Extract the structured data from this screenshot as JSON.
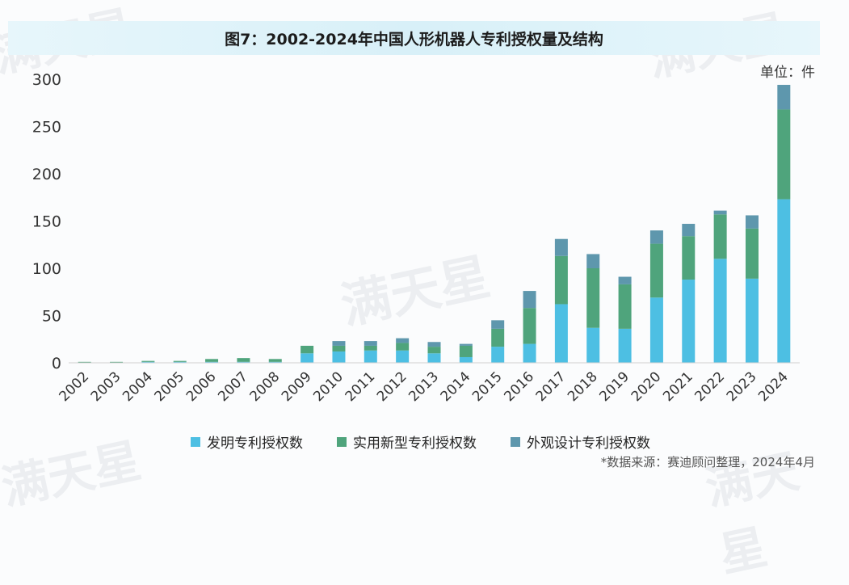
{
  "title": "图7：2002-2024年中国人形机器人专利授权量及结构",
  "unit": "单位：件",
  "source": "*数据来源：赛迪顾问整理，2024年4月",
  "watermark": "满天星",
  "colors": {
    "invention": "#4dbfe3",
    "utility": "#4fa47c",
    "design": "#5e97ad"
  },
  "chart_data": {
    "type": "bar",
    "stacked": true,
    "categories": [
      "2002",
      "2003",
      "2004",
      "2005",
      "2006",
      "2007",
      "2008",
      "2009",
      "2010",
      "2011",
      "2012",
      "2013",
      "2014",
      "2015",
      "2016",
      "2017",
      "2018",
      "2019",
      "2020",
      "2021",
      "2022",
      "2023",
      "2024"
    ],
    "series": [
      {
        "name": "发明专利授权数",
        "values": [
          0,
          0,
          1,
          1,
          1,
          1,
          1,
          10,
          12,
          13,
          13,
          10,
          6,
          17,
          20,
          62,
          37,
          36,
          69,
          88,
          110,
          89,
          173
        ]
      },
      {
        "name": "实用新型专利授权数",
        "values": [
          1,
          1,
          1,
          1,
          3,
          4,
          3,
          8,
          6,
          5,
          8,
          7,
          12,
          19,
          38,
          51,
          63,
          47,
          57,
          46,
          47,
          53,
          95
        ]
      },
      {
        "name": "外观设计专利授权数",
        "values": [
          0,
          0,
          0,
          0,
          0,
          0,
          0,
          0,
          5,
          5,
          5,
          5,
          2,
          9,
          18,
          18,
          15,
          8,
          14,
          13,
          4,
          14,
          26
        ]
      }
    ],
    "ylim": [
      0,
      300
    ],
    "yticks": [
      0,
      50,
      100,
      150,
      200,
      250,
      300
    ],
    "legend_position": "bottom",
    "grid": false
  }
}
